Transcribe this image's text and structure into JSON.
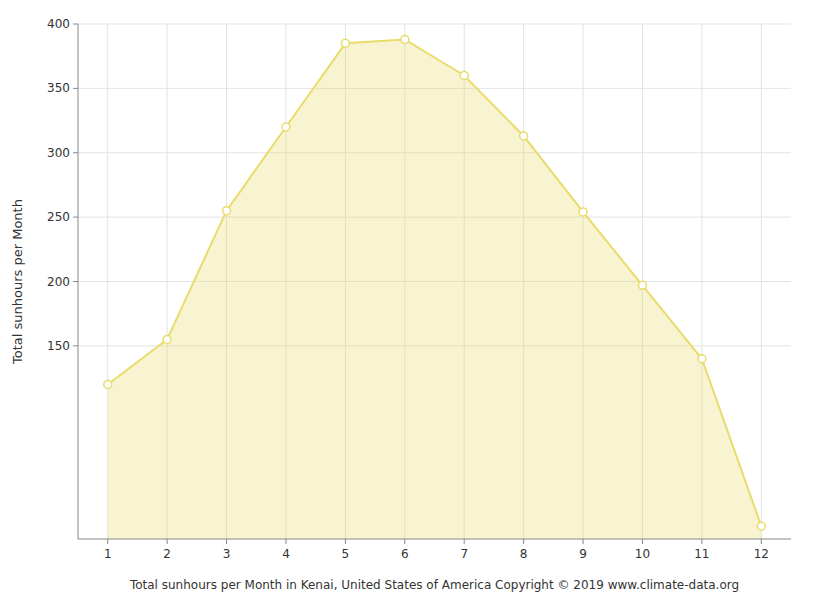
{
  "chart_data": {
    "type": "area",
    "x": [
      1,
      2,
      3,
      4,
      5,
      6,
      7,
      8,
      9,
      10,
      11,
      12
    ],
    "values": [
      120,
      155,
      255,
      320,
      385,
      388,
      360,
      313,
      254,
      197,
      140,
      10
    ],
    "xlabel": "Total sunhours per Month in Kenai, United States of America Copyright © 2019 www.climate-data.org",
    "ylabel": "Total sunhours per Month",
    "xlim": [
      0.5,
      12.5
    ],
    "ylim": [
      0,
      400
    ],
    "xticks": [
      1,
      2,
      3,
      4,
      5,
      6,
      7,
      8,
      9,
      10,
      11,
      12
    ],
    "yticks": [
      150,
      200,
      250,
      300,
      350,
      400
    ],
    "grid": true,
    "color": "#E8DC6A",
    "marker": "circle"
  }
}
